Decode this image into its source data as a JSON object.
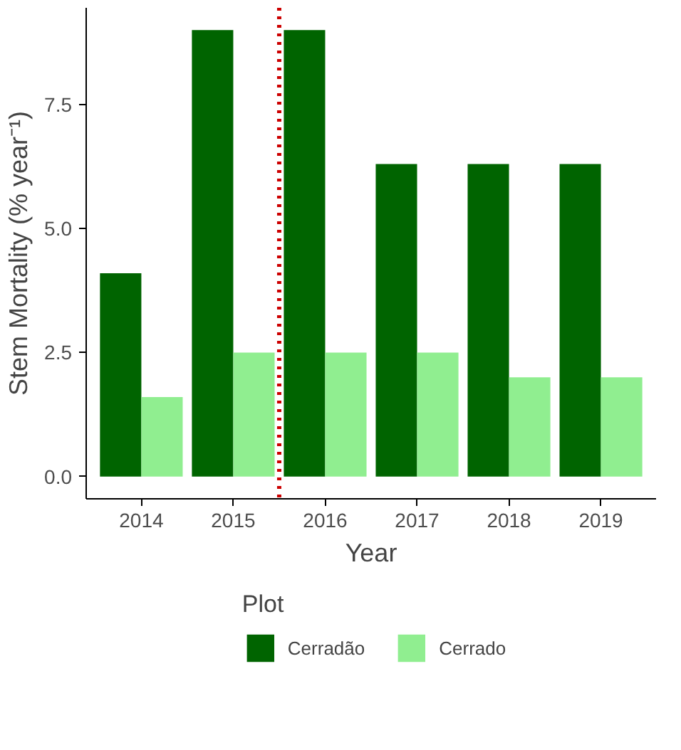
{
  "chart_data": {
    "type": "bar",
    "xlabel": "Year",
    "ylabel": "Stem Mortality (% year⁻¹)",
    "legend_title": "Plot",
    "x": [
      2014,
      2015,
      2016,
      2017,
      2018,
      2019
    ],
    "series": [
      {
        "name": "Cerradão",
        "color": "#006400",
        "values": [
          4.1,
          9.0,
          9.0,
          6.3,
          6.3,
          6.3
        ]
      },
      {
        "name": "Cerrado",
        "color": "#90ee90",
        "values": [
          1.6,
          2.5,
          2.5,
          2.5,
          2.0,
          2.0
        ]
      }
    ],
    "xlim": [
      2013.4,
      2019.6
    ],
    "xticks": [
      2014,
      2015,
      2016,
      2017,
      2018,
      2019
    ],
    "ylim": [
      -0.45,
      9.45
    ],
    "yticks": [
      {
        "value": 0,
        "label": "0.0"
      },
      {
        "value": 2.5,
        "label": "2.5"
      },
      {
        "value": 5,
        "label": "5.0"
      },
      {
        "value": 7.5,
        "label": "7.5"
      }
    ],
    "ref_lines": [
      {
        "axis": "x",
        "value": 2015.5,
        "color": "#cc0000",
        "line_style": "dotted"
      }
    ],
    "grid": false,
    "legend": "bottom"
  }
}
